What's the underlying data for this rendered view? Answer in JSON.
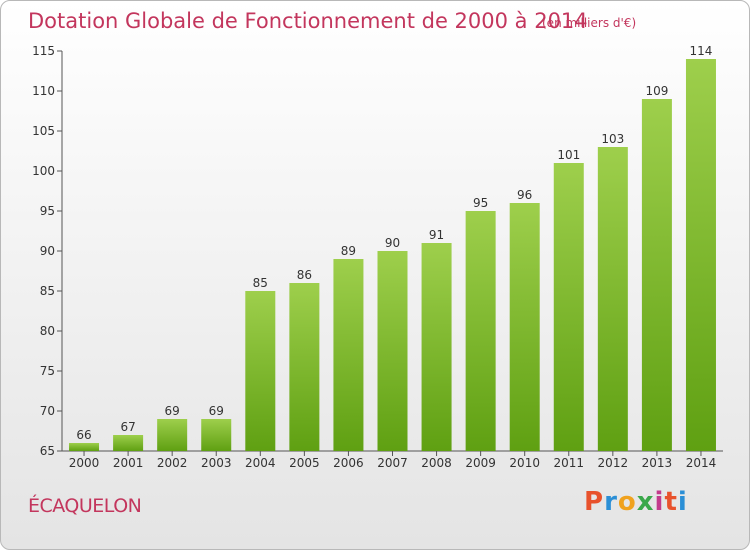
{
  "title": "Dotation Globale de Fonctionnement de 2000 à 2014",
  "subtitle": "(en milliers d'€)",
  "commune": "ÉCAQUELON",
  "logo": {
    "text": "Proxiti",
    "colors": [
      "#e8522c",
      "#2b8fd6",
      "#f0a21e",
      "#3aa84a",
      "#c33b8c",
      "#e8522c",
      "#2b8fd6"
    ]
  },
  "colors": {
    "title": "#c3365d",
    "bar_light": "#9ecf4c",
    "bar_dark": "#5fa012"
  },
  "chart_data": {
    "type": "bar",
    "categories": [
      "2000",
      "2001",
      "2002",
      "2003",
      "2004",
      "2005",
      "2006",
      "2007",
      "2008",
      "2009",
      "2010",
      "2011",
      "2012",
      "2013",
      "2014"
    ],
    "values": [
      66,
      67,
      69,
      69,
      85,
      86,
      89,
      90,
      91,
      95,
      96,
      101,
      103,
      109,
      114
    ],
    "ylim": [
      65,
      115
    ],
    "yticks": [
      65,
      70,
      75,
      80,
      85,
      90,
      95,
      100,
      105,
      110,
      115
    ],
    "xlabel": "",
    "ylabel": "",
    "grid": false,
    "data_labels": true
  }
}
